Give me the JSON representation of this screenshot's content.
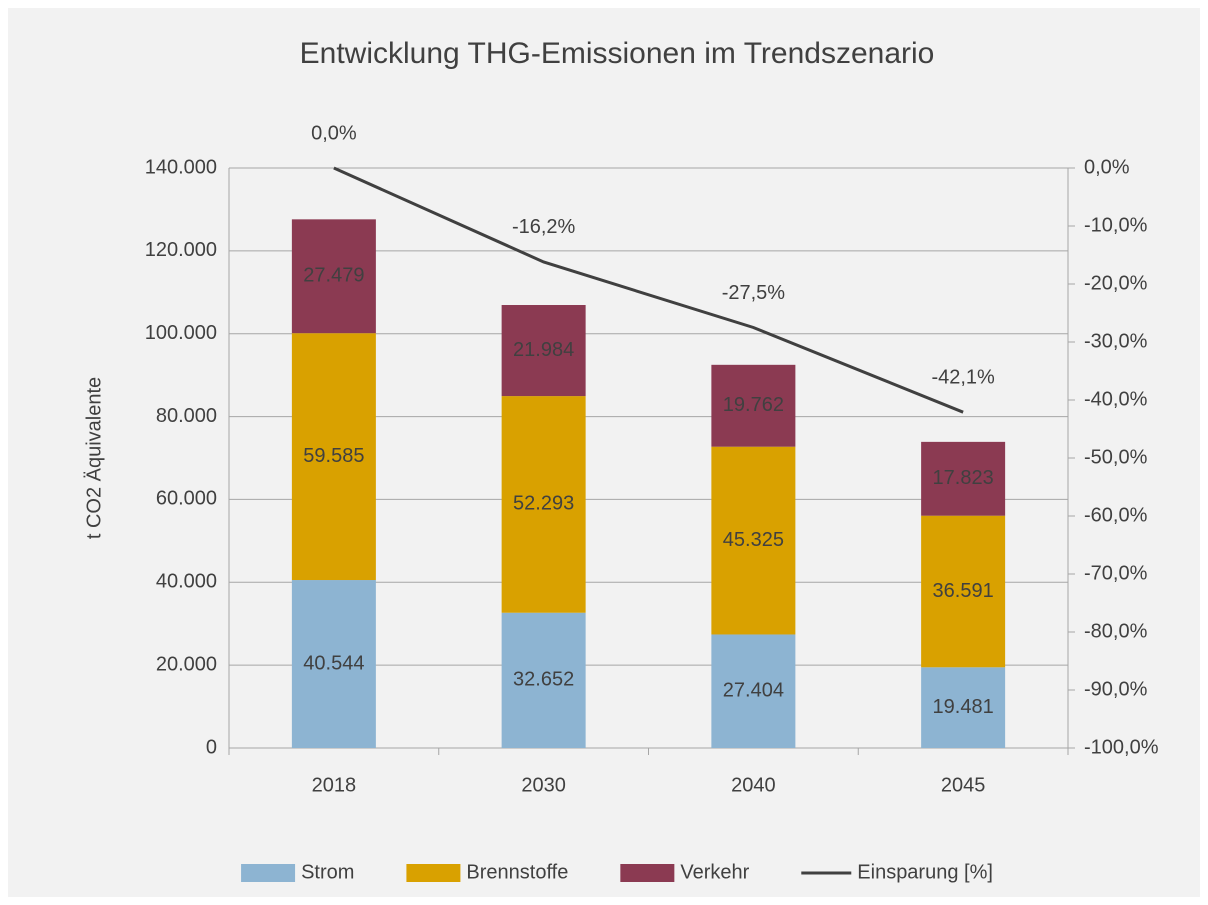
{
  "chart_data": {
    "type": "bar",
    "stacked": true,
    "title": "Entwicklung THG-Emissionen im Trendszenario",
    "y_label": "t CO2 Äquivalente",
    "categories": [
      "2018",
      "2030",
      "2040",
      "2045"
    ],
    "series": [
      {
        "name": "Strom",
        "type": "bar",
        "color": "#8db4d2",
        "values": [
          40544,
          32652,
          27404,
          19481
        ],
        "value_labels": [
          "40.544",
          "32.652",
          "27.404",
          "19.481"
        ]
      },
      {
        "name": "Brennstoffe",
        "type": "bar",
        "color": "#d9a100",
        "values": [
          59585,
          52293,
          45325,
          36591
        ],
        "value_labels": [
          "59.585",
          "52.293",
          "45.325",
          "36.591"
        ]
      },
      {
        "name": "Verkehr",
        "type": "bar",
        "color": "#8b3a52",
        "values": [
          27479,
          21984,
          19762,
          17823
        ],
        "value_labels": [
          "27.479",
          "21.984",
          "19.762",
          "17.823"
        ]
      },
      {
        "name": "Einsparung [%]",
        "type": "line",
        "axis": "y2",
        "color": "#404040",
        "values": [
          0,
          -16.2,
          -27.5,
          -42.1
        ],
        "value_labels": [
          "0,0%",
          "-16,2%",
          "-27,5%",
          "-42,1%"
        ]
      }
    ],
    "ylim": [
      0,
      140000
    ],
    "yticks": [
      0,
      {
        "value": 20000,
        "label": "20.000"
      },
      {
        "value": 40000,
        "label": "40.000"
      },
      {
        "value": 60000,
        "label": "60.000"
      },
      {
        "value": 80000,
        "label": "80.000"
      },
      {
        "value": 100000,
        "label": "100.000"
      },
      {
        "value": 120000,
        "label": "120.000"
      },
      {
        "value": 140000,
        "label": "140.000"
      }
    ],
    "y2lim": [
      -100,
      0
    ],
    "y2ticks": [
      {
        "value": 0,
        "label": "0,0%"
      },
      {
        "value": -10,
        "label": "-10,0%"
      },
      {
        "value": -20,
        "label": "-20,0%"
      },
      {
        "value": -30,
        "label": "-30,0%"
      },
      {
        "value": -40,
        "label": "-40,0%"
      },
      {
        "value": -50,
        "label": "-50,0%"
      },
      {
        "value": -60,
        "label": "-60,0%"
      },
      {
        "value": -70,
        "label": "-70,0%"
      },
      {
        "value": -80,
        "label": "-80,0%"
      },
      {
        "value": -90,
        "label": "-90,0%"
      },
      {
        "value": -100,
        "label": "-100,0%"
      }
    ],
    "grid": true,
    "legend": "bottom"
  }
}
